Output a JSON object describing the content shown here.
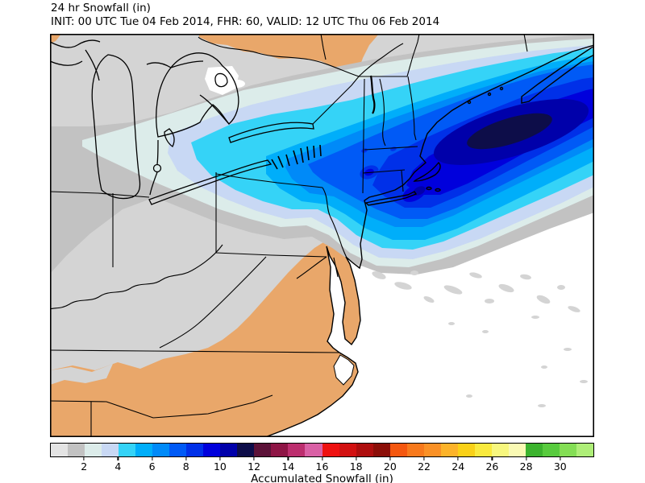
{
  "header": {
    "title": "24 hr Snowfall (in)",
    "subtitle": "INIT: 00 UTC Tue 04 Feb 2014, FHR: 60, VALID: 12 UTC Thu 06 Feb 2014"
  },
  "colorbar": {
    "label": "Accumulated Snowfall (in)",
    "min": 0,
    "max": 32,
    "ticks": [
      2,
      4,
      6,
      8,
      10,
      12,
      14,
      16,
      18,
      20,
      22,
      24,
      26,
      28,
      30
    ],
    "segment_colors": [
      "#e4e4e4",
      "#c2c2c2",
      "#dcecea",
      "#c8d8f4",
      "#35d3f7",
      "#00aefa",
      "#008af8",
      "#005af6",
      "#0030e8",
      "#0000dc",
      "#0000aa",
      "#0d0d49",
      "#5c1238",
      "#8e1545",
      "#bc2e6e",
      "#d960a5",
      "#ee1111",
      "#d21111",
      "#ae0e0e",
      "#8b0e08",
      "#f4570f",
      "#f7791c",
      "#fa9126",
      "#fcb32a",
      "#fad118",
      "#faea3e",
      "#f7f77e",
      "#fafab4",
      "#3cb32e",
      "#58cb3e",
      "#84de55",
      "#aeee78"
    ]
  },
  "map": {
    "palette": {
      "ocean": "#ffffff",
      "land": "#d4d4d4",
      "bare_ground": "#e9a76a",
      "line": "#000000",
      "lvl_1_2": "#c2c2c2",
      "lvl_2_3": "#dcecea",
      "lvl_3_4": "#c8d8f4",
      "lvl_4_5": "#35d3f7",
      "lvl_5_6": "#00aefa",
      "lvl_6_7": "#008af8",
      "lvl_7_8": "#005af6",
      "lvl_8_9": "#0030e8",
      "lvl_9_10": "#0000dc",
      "lvl_10_11": "#0000aa",
      "lvl_11_12": "#0d0d49"
    }
  }
}
